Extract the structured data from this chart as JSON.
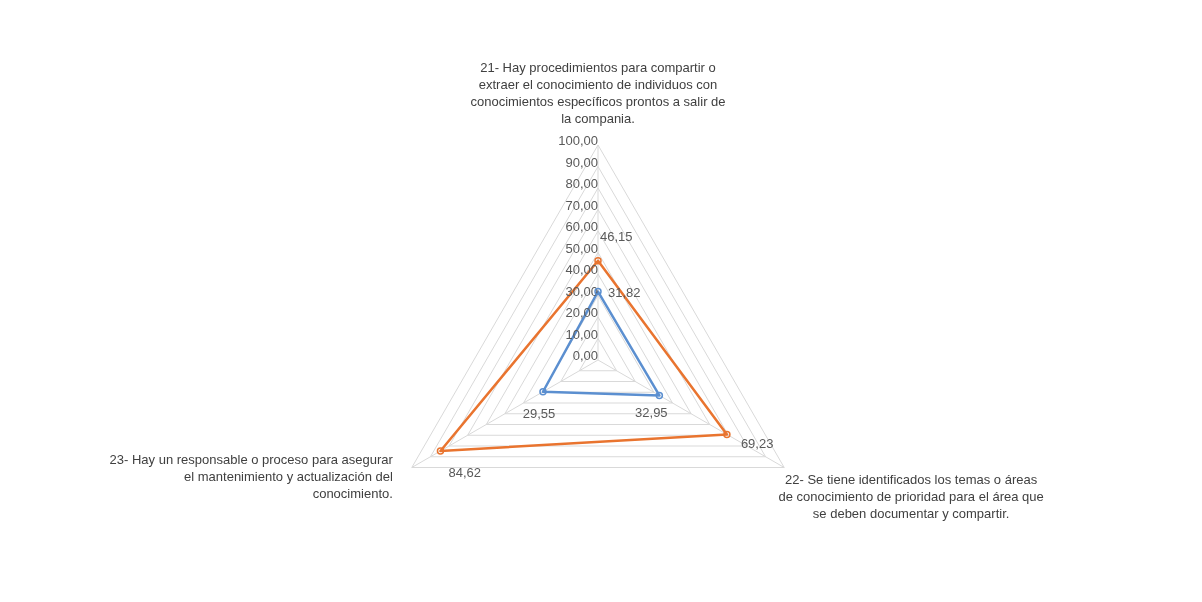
{
  "chart_data": {
    "type": "radar",
    "categories": [
      "21- Hay procedimientos para compartir o extraer el conocimiento de individuos con conocimientos específicos prontos a salir de la compania.",
      "22- Se tiene identificados los temas o áreas de conocimiento de prioridad para el área que se deben documentar y compartir.",
      "23- Hay un responsable o proceso para asegurar el mantenimiento y actualización del conocimiento."
    ],
    "series": [
      {
        "color": "#5b8fd0",
        "values": [
          31.82,
          32.95,
          29.55
        ],
        "value_labels": [
          "31,82",
          "32,95",
          "29,55"
        ]
      },
      {
        "color": "#e9742f",
        "values": [
          46.15,
          69.23,
          84.62
        ],
        "value_labels": [
          "46,15",
          "69,23",
          "84,62"
        ]
      }
    ],
    "ylim": [
      0,
      100
    ],
    "yticks": [
      {
        "value": 0,
        "label": "0,00"
      },
      {
        "value": 10,
        "label": "10,00"
      },
      {
        "value": 20,
        "label": "20,00"
      },
      {
        "value": 30,
        "label": "30,00"
      },
      {
        "value": 40,
        "label": "40,00"
      },
      {
        "value": 50,
        "label": "50,00"
      },
      {
        "value": 60,
        "label": "60,00"
      },
      {
        "value": 70,
        "label": "70,00"
      },
      {
        "value": 80,
        "label": "80,00"
      },
      {
        "value": 90,
        "label": "90,00"
      },
      {
        "value": 100,
        "label": "100,00"
      }
    ],
    "grid": true,
    "marker": "circle",
    "legend": false
  }
}
